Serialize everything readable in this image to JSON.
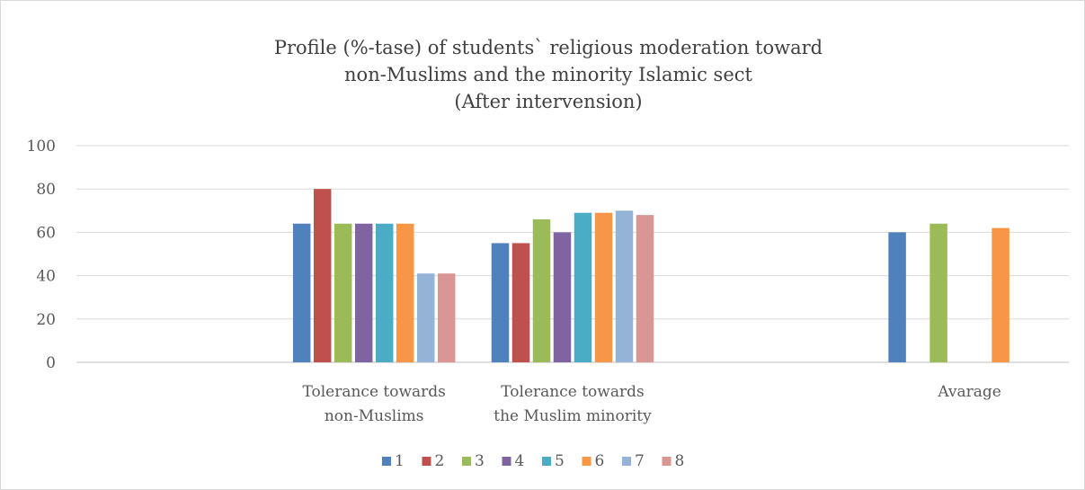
{
  "chart_data": {
    "type": "bar",
    "title": [
      "Profile (%-tase) of students` religious moderation toward",
      "non-Muslims and the minority Islamic sect",
      "(After intervension)"
    ],
    "categories": [
      [
        "",
        ""
      ],
      [
        "Tolerance towards",
        "non-Muslims"
      ],
      [
        "Tolerance towards",
        "the Muslim minority"
      ],
      [
        "",
        ""
      ],
      [
        "Avarage",
        ""
      ]
    ],
    "series": [
      {
        "name": "1",
        "color": "#4f81bd",
        "values": [
          null,
          64,
          55,
          null,
          60
        ]
      },
      {
        "name": "2",
        "color": "#c0504d",
        "values": [
          null,
          80,
          55,
          null,
          null
        ]
      },
      {
        "name": "3",
        "color": "#9bbb59",
        "values": [
          null,
          64,
          66,
          null,
          64
        ]
      },
      {
        "name": "4",
        "color": "#8064a2",
        "values": [
          null,
          64,
          60,
          null,
          null
        ]
      },
      {
        "name": "5",
        "color": "#4bacc6",
        "values": [
          null,
          64,
          69,
          null,
          null
        ]
      },
      {
        "name": "6",
        "color": "#f79646",
        "values": [
          null,
          64,
          69,
          null,
          62
        ]
      },
      {
        "name": "7",
        "color": "#95b3d7",
        "values": [
          null,
          41,
          70,
          null,
          null
        ]
      },
      {
        "name": "8",
        "color": "#d99694",
        "values": [
          null,
          41,
          68,
          null,
          null
        ]
      }
    ],
    "yticks": [
      0,
      20,
      40,
      60,
      80,
      100
    ],
    "ylim": [
      0,
      100
    ],
    "grid": true,
    "legend": "bottom"
  }
}
